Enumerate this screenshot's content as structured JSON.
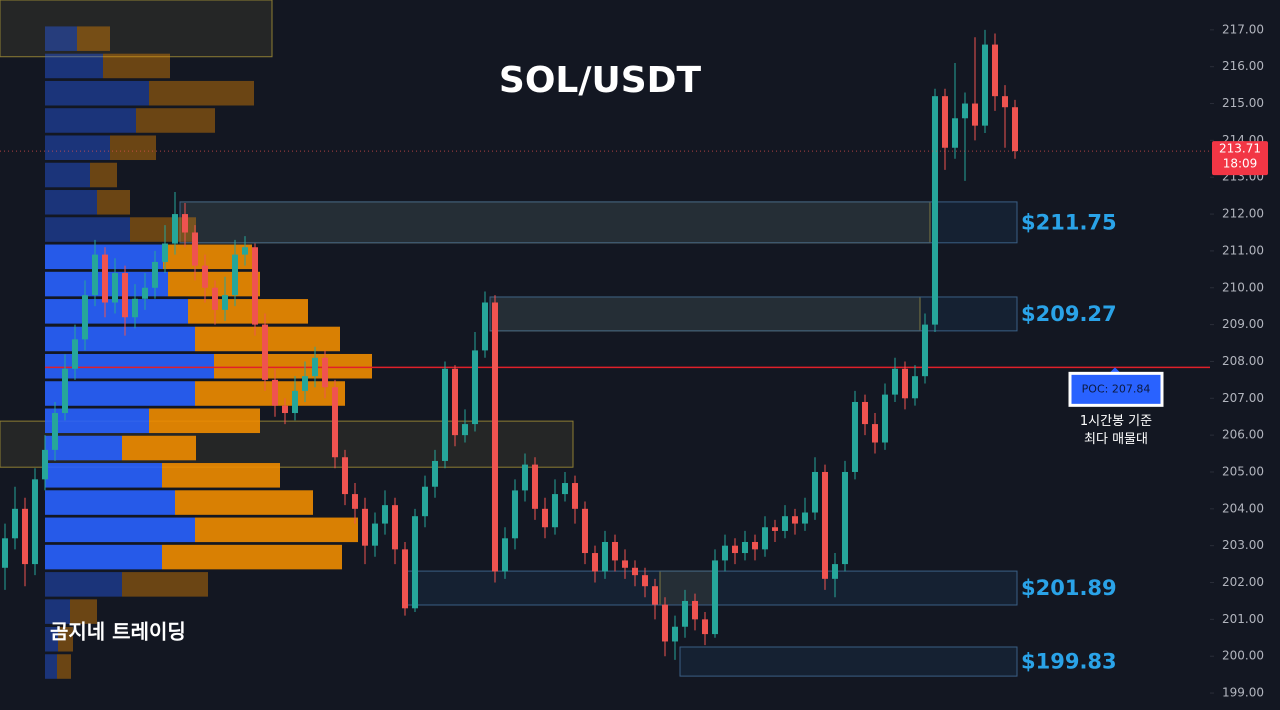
{
  "chart_data": {
    "type": "candlestick",
    "title": "SOL/USDT",
    "watermark": "곰지네 트레이딩",
    "ylim": [
      198.54,
      217.81
    ],
    "yticks": [
      {
        "value": 199,
        "label": "199.00"
      },
      {
        "value": 200,
        "label": "200.00"
      },
      {
        "value": 201,
        "label": "201.00"
      },
      {
        "value": 202,
        "label": "202.00"
      },
      {
        "value": 203,
        "label": "203.00"
      },
      {
        "value": 204,
        "label": "204.00"
      },
      {
        "value": 205,
        "label": "205.00"
      },
      {
        "value": 206,
        "label": "206.00"
      },
      {
        "value": 207,
        "label": "207.00"
      },
      {
        "value": 208,
        "label": "208.00"
      },
      {
        "value": 209,
        "label": "209.00"
      },
      {
        "value": 210,
        "label": "210.00"
      },
      {
        "value": 211,
        "label": "211.00"
      },
      {
        "value": 212,
        "label": "212.00"
      },
      {
        "value": 213,
        "label": "213.00"
      },
      {
        "value": 214,
        "label": "214.00"
      },
      {
        "value": 215,
        "label": "215.00"
      },
      {
        "value": 216,
        "label": "216.00"
      },
      {
        "value": 217,
        "label": "217.00"
      }
    ],
    "up_color": "#26a69a",
    "down_color": "#ef5350",
    "open": [
      202.4,
      203.2,
      204.0,
      202.5,
      204.8,
      205.6,
      206.6,
      207.8,
      208.6,
      209.8,
      210.9,
      209.6,
      210.4,
      209.2,
      209.7,
      210.0,
      210.7,
      211.2,
      212.0,
      211.5,
      210.6,
      210.0,
      209.4,
      209.8,
      210.9,
      211.1,
      209.0,
      207.5,
      206.8,
      206.6,
      207.2,
      207.6,
      208.1,
      207.3,
      205.4,
      204.4,
      204.0,
      203.0,
      203.6,
      204.1,
      202.9,
      201.3,
      203.8,
      204.6,
      205.3,
      207.8,
      206.0,
      206.3,
      208.3,
      209.6,
      202.3,
      203.2,
      204.5,
      205.2,
      204.0,
      203.5,
      204.4,
      204.7,
      204.0,
      202.8,
      202.3,
      203.1,
      202.6,
      202.4,
      202.2,
      201.9,
      201.4,
      200.4,
      200.8,
      201.5,
      201.0,
      200.6,
      202.6,
      203.0,
      202.8,
      203.1,
      202.9,
      203.5,
      203.4,
      203.8,
      203.6,
      203.9,
      205.0,
      202.1,
      202.5,
      205.0,
      206.9,
      206.3,
      205.8,
      207.1,
      207.8,
      207.0,
      207.6,
      209.0,
      215.2,
      213.8,
      214.6,
      215.0,
      214.4,
      216.6,
      215.2,
      214.9
    ],
    "high": [
      203.6,
      204.6,
      204.3,
      205.1,
      206.0,
      206.9,
      208.2,
      209.0,
      210.2,
      211.3,
      211.1,
      210.8,
      210.6,
      210.1,
      210.4,
      211.0,
      211.7,
      212.6,
      212.3,
      211.7,
      210.9,
      210.2,
      210.3,
      211.3,
      211.4,
      211.2,
      209.3,
      207.8,
      207.0,
      207.6,
      208.0,
      208.4,
      208.3,
      207.5,
      205.6,
      204.7,
      204.3,
      203.9,
      204.5,
      204.3,
      203.1,
      204.0,
      204.9,
      205.6,
      208.0,
      207.9,
      206.7,
      208.8,
      209.9,
      209.8,
      203.5,
      204.8,
      205.5,
      205.4,
      204.3,
      204.8,
      205.0,
      204.9,
      204.2,
      203.0,
      203.4,
      203.3,
      202.9,
      202.6,
      202.4,
      202.1,
      201.6,
      201.1,
      201.8,
      201.7,
      201.2,
      202.9,
      203.3,
      203.2,
      203.4,
      203.3,
      203.8,
      203.7,
      204.1,
      204.0,
      204.3,
      205.4,
      205.2,
      202.8,
      205.3,
      207.2,
      207.1,
      206.6,
      207.4,
      208.1,
      208.0,
      207.9,
      209.3,
      215.4,
      215.4,
      216.1,
      215.3,
      216.8,
      217.0,
      216.9,
      215.5,
      215.1
    ],
    "low": [
      201.8,
      202.9,
      201.9,
      202.2,
      204.5,
      205.3,
      206.4,
      207.5,
      208.3,
      209.5,
      209.2,
      209.3,
      208.7,
      208.9,
      209.4,
      209.7,
      210.4,
      210.9,
      211.1,
      210.2,
      209.6,
      209.0,
      209.1,
      209.5,
      210.6,
      208.7,
      207.2,
      206.5,
      206.3,
      206.4,
      206.9,
      207.3,
      207.0,
      205.1,
      204.1,
      203.6,
      202.5,
      202.7,
      203.3,
      202.5,
      201.1,
      201.2,
      203.5,
      204.3,
      205.1,
      205.7,
      205.8,
      206.1,
      208.1,
      202.0,
      202.1,
      202.9,
      204.2,
      203.7,
      203.2,
      203.3,
      204.2,
      203.6,
      202.5,
      202.0,
      202.1,
      202.3,
      202.1,
      201.9,
      201.6,
      201.0,
      200.0,
      199.9,
      200.5,
      200.7,
      200.3,
      200.5,
      202.3,
      202.5,
      202.6,
      202.6,
      202.7,
      203.1,
      203.2,
      203.3,
      203.4,
      203.7,
      201.8,
      201.6,
      202.3,
      204.8,
      206.0,
      205.5,
      205.6,
      206.9,
      206.7,
      206.8,
      207.4,
      208.8,
      213.2,
      213.5,
      212.9,
      214.0,
      214.2,
      214.8,
      213.8,
      213.5
    ],
    "close": [
      203.2,
      204.0,
      202.5,
      204.8,
      205.6,
      206.6,
      207.8,
      208.6,
      209.8,
      210.9,
      209.6,
      210.4,
      209.2,
      209.7,
      210.0,
      210.7,
      211.2,
      212.0,
      211.5,
      210.6,
      210.0,
      209.4,
      209.8,
      210.9,
      211.1,
      209.0,
      207.5,
      206.8,
      206.6,
      207.2,
      207.6,
      208.1,
      207.3,
      205.4,
      204.4,
      204.0,
      203.0,
      203.6,
      204.1,
      202.9,
      201.3,
      203.8,
      204.6,
      205.3,
      207.8,
      206.0,
      206.3,
      208.3,
      209.6,
      202.3,
      203.2,
      204.5,
      205.2,
      204.0,
      203.5,
      204.4,
      204.7,
      204.0,
      202.8,
      202.3,
      203.1,
      202.6,
      202.4,
      202.2,
      201.9,
      201.4,
      200.4,
      200.8,
      201.5,
      201.0,
      200.6,
      202.6,
      203.0,
      202.8,
      203.1,
      202.9,
      203.5,
      203.4,
      203.8,
      203.6,
      203.9,
      205.0,
      202.1,
      202.5,
      205.0,
      206.9,
      206.3,
      205.8,
      207.1,
      207.8,
      207.0,
      207.6,
      209.0,
      215.2,
      213.8,
      214.6,
      215.0,
      214.4,
      216.6,
      215.2,
      214.9,
      213.71
    ],
    "volume_profile": {
      "levels": [
        216.76,
        216.02,
        215.28,
        214.54,
        213.8,
        213.06,
        212.32,
        211.58,
        210.84,
        210.1,
        209.36,
        208.61,
        207.87,
        207.13,
        206.39,
        205.65,
        204.91,
        204.17,
        203.43,
        202.69,
        201.95,
        201.21,
        200.46,
        199.72
      ],
      "value_area": [
        202.3,
        211.2
      ],
      "buy": {
        "color": "#2962ff",
        "values": [
          32,
          58,
          104,
          91,
          65,
          45,
          52,
          85,
          118,
          123,
          143,
          150,
          169,
          150,
          104,
          77,
          117,
          130,
          150,
          117,
          77,
          25,
          13,
          12
        ]
      },
      "sell": {
        "color": "#f08c00",
        "values": [
          33,
          67,
          105,
          79,
          46,
          27,
          33,
          66,
          89,
          92,
          120,
          145,
          158,
          150,
          111,
          74,
          118,
          138,
          163,
          180,
          86,
          27,
          15,
          14
        ]
      }
    },
    "zones": [
      {
        "label": "$211.75",
        "high": 212.33,
        "low": 211.22
      },
      {
        "label": "$209.27",
        "high": 209.75,
        "low": 208.83
      },
      {
        "label": "$201.89",
        "high": 202.31,
        "low": 201.39
      },
      {
        "label": "$199.83",
        "high": 200.25,
        "low": 199.46
      }
    ],
    "highlights": [
      {
        "high": 217.81,
        "low": 216.27
      },
      {
        "high": 206.38,
        "low": 205.13
      },
      {
        "high": 212.33,
        "low": 211.22
      },
      {
        "high": 209.75,
        "low": 208.83
      },
      {
        "high": 202.31,
        "low": 201.39
      }
    ],
    "poc": {
      "value": 207.84,
      "label": "POC: 207.84",
      "note": [
        "1시간봉 기준",
        "최다 매물대"
      ]
    },
    "last_price": {
      "value": 213.71,
      "label": "213.71",
      "countdown": "18:09"
    }
  }
}
